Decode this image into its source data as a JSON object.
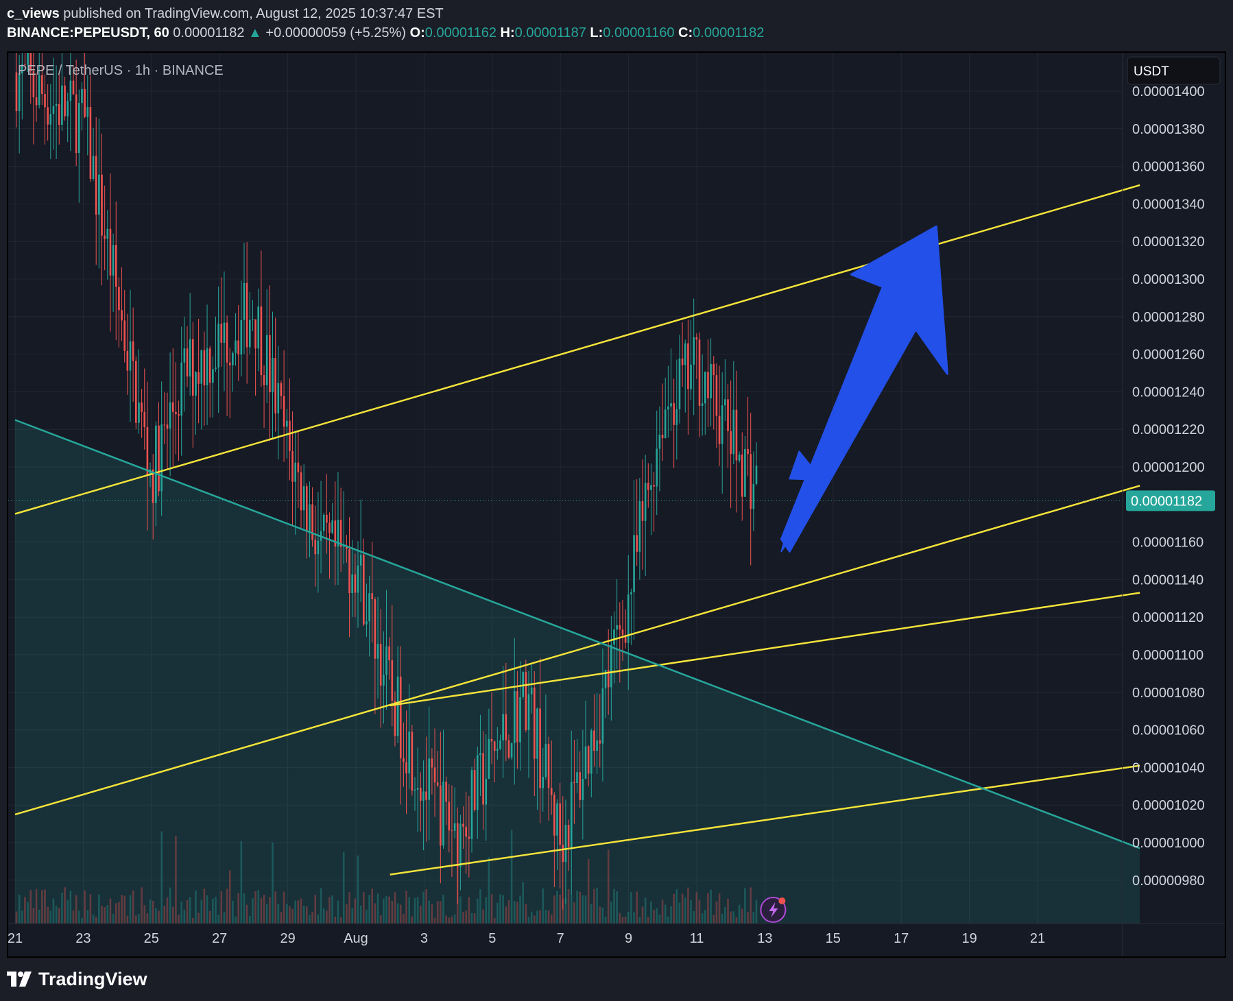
{
  "header": {
    "author": "c_views",
    "published_text": "published on TradingView.com, August 12, 2025 10:37:47 EST",
    "symbol": "BINANCE:PEPEUSDT, 60",
    "last": "0.00001182",
    "change": "+0.00000059 (+5.25%)",
    "o_label": "O:",
    "o_value": "0.00001162",
    "h_label": "H:",
    "h_value": "0.00001187",
    "l_label": "L:",
    "l_value": "0.00001160",
    "c_label": "C:",
    "c_value": "0.00001182"
  },
  "chart_data": {
    "type": "candlestick",
    "title": "PEPE / TetherUS · 1h · BINANCE",
    "currency": "USDT",
    "last_price_label": "0.00001182",
    "y_ticks": [
      "0.00001400",
      "0.00001380",
      "0.00001360",
      "0.00001340",
      "0.00001320",
      "0.00001300",
      "0.00001280",
      "0.00001260",
      "0.00001240",
      "0.00001220",
      "0.00001200",
      "0.00001160",
      "0.00001140",
      "0.00001120",
      "0.00001100",
      "0.00001080",
      "0.00001060",
      "0.00001040",
      "0.00001020",
      "0.00001000",
      "0.00000980"
    ],
    "x_ticks": [
      "21",
      "23",
      "25",
      "27",
      "29",
      "Aug",
      "3",
      "5",
      "7",
      "9",
      "11",
      "13",
      "15",
      "17",
      "19",
      "21"
    ],
    "ylim": [
      9.7e-06,
      1.43e-05
    ],
    "price_path": [
      [
        "Jul 21",
        1.41e-05
      ],
      [
        "Jul 22",
        1.395e-05
      ],
      [
        "Jul 23",
        1.385e-05
      ],
      [
        "Jul 24",
        1.29e-05
      ],
      [
        "Jul 25",
        1.195e-05
      ],
      [
        "Jul 26",
        1.25e-05
      ],
      [
        "Jul 27",
        1.265e-05
      ],
      [
        "Jul 28",
        1.285e-05
      ],
      [
        "Jul 29",
        1.21e-05
      ],
      [
        "Jul 30",
        1.155e-05
      ],
      [
        "Jul 31",
        1.15e-05
      ],
      [
        "Aug 1",
        1.08e-05
      ],
      [
        "Aug 2",
        1.03e-05
      ],
      [
        "Aug 3",
        1.005e-05
      ],
      [
        "Aug 4",
        1.045e-05
      ],
      [
        "Aug 5",
        1.08e-05
      ],
      [
        "Aug 6",
        1e-05
      ],
      [
        "Aug 7",
        1.06e-05
      ],
      [
        "Aug 8",
        1.13e-05
      ],
      [
        "Aug 9",
        1.23e-05
      ],
      [
        "Aug 10",
        1.255e-05
      ],
      [
        "Aug 11",
        1.215e-05
      ],
      [
        "Aug 12",
        1.182e-05
      ]
    ],
    "trendlines": [
      {
        "color": "#f5e43a",
        "from": [
          "Jul 21",
          1.175e-05
        ],
        "to": [
          "Aug 23",
          1.35e-05
        ]
      },
      {
        "color": "#f5e43a",
        "from": [
          "Jul 21",
          1.015e-05
        ],
        "to": [
          "Aug 23",
          1.19e-05
        ]
      },
      {
        "color": "#f5e43a",
        "from": [
          "Aug 1",
          1.073e-05
        ],
        "to": [
          "Aug 23",
          1.133e-05
        ]
      },
      {
        "color": "#f5e43a",
        "from": [
          "Aug 1",
          9.83e-06
        ],
        "to": [
          "Aug 23",
          1.041e-05
        ]
      },
      {
        "color": "#26a69a",
        "from": [
          "Jul 21",
          1.225e-05
        ],
        "to": [
          "Aug 23",
          9.97e-06
        ]
      }
    ],
    "annotation": {
      "type": "arrow",
      "color": "#2350e8",
      "direction": "up"
    },
    "colors": {
      "up": "#26a69a",
      "down": "#ef5350",
      "background": "#161a25",
      "grid": "#232733"
    }
  }
}
